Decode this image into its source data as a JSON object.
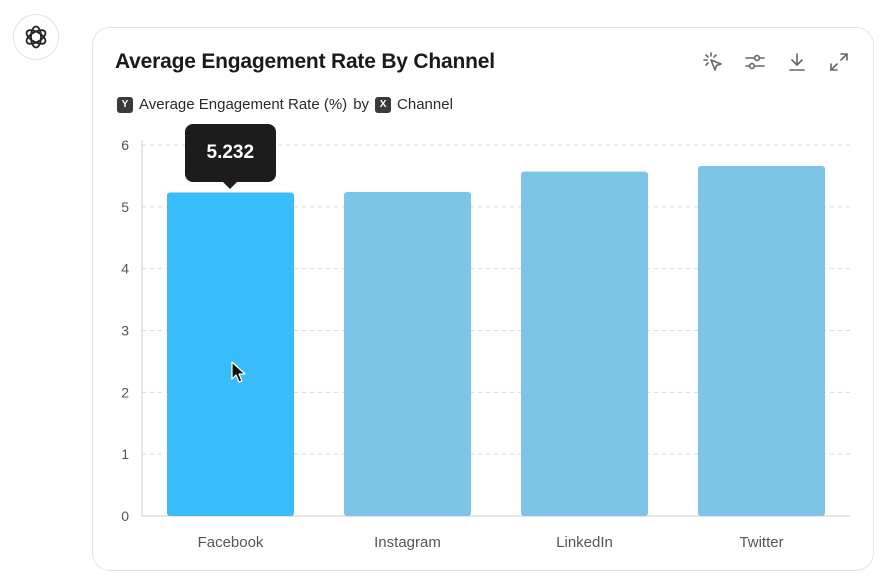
{
  "chart_data": {
    "type": "bar",
    "title": "Average Engagement Rate By Channel",
    "subtitle": {
      "y_badge": "Y",
      "y_label": "Average Engagement Rate (%)",
      "connector": "by",
      "x_badge": "X",
      "x_label": "Channel"
    },
    "xlabel": "Channel",
    "ylabel": "Average Engagement Rate (%)",
    "categories": [
      "Facebook",
      "Instagram",
      "LinkedIn",
      "Twitter"
    ],
    "values": [
      5.232,
      5.24,
      5.57,
      5.66
    ],
    "ylim": [
      0,
      6
    ],
    "yticks": [
      0,
      1,
      2,
      3,
      4,
      5,
      6
    ],
    "grid": true,
    "highlight_index": 0,
    "tooltip": "5.232"
  },
  "colors": {
    "bar": "#7dc5e6",
    "bar_highlight": "#38bdf8",
    "grid": "#dcdcdc",
    "axis": "#cfcfcf"
  },
  "toolbar": {
    "icons": [
      "sparkle-select-icon",
      "sliders-icon",
      "download-icon",
      "expand-icon"
    ]
  }
}
